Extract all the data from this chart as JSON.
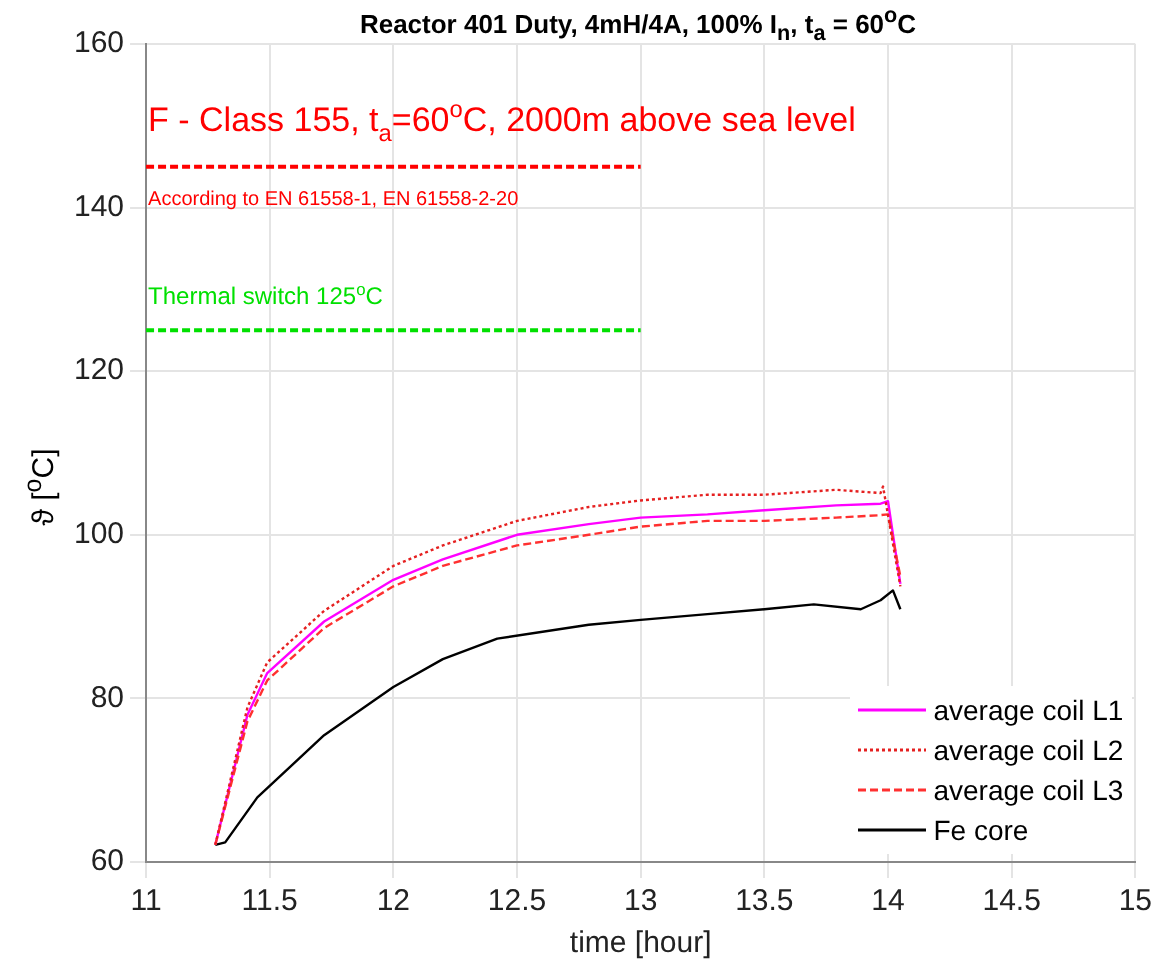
{
  "chart_data": {
    "type": "line",
    "title": "Reactor 401 Duty, 4mH/4A, 100% I$_{n}$, t$_{a}$ = 60$^{o}$C",
    "xlabel": "time [hour]",
    "ylabel": "ϑ [$^{o}$C]",
    "xlim": [
      11,
      15
    ],
    "xticks": [
      11,
      11.5,
      12,
      12.5,
      13,
      13.5,
      14,
      14.5,
      15
    ],
    "ylim": [
      60,
      160
    ],
    "yticks": [
      60,
      80,
      100,
      120,
      140,
      160
    ],
    "grid": true,
    "legend": "bottom right",
    "marker": "none",
    "series": [
      {
        "name": "average coil L1",
        "color": "#ff00ff",
        "line_style": "solid",
        "x": [
          11.28,
          11.41,
          11.49,
          11.72,
          12.0,
          12.2,
          12.5,
          12.79,
          13.0,
          13.27,
          13.5,
          13.79,
          13.97,
          14.0,
          14.05
        ],
        "values": [
          62.1,
          78,
          83.1,
          89.4,
          94.5,
          97,
          100,
          101.3,
          102.1,
          102.5,
          103,
          103.6,
          103.8,
          104.1,
          94
        ]
      },
      {
        "name": "average coil L2",
        "color": "#e52020",
        "line_style": "dotted",
        "x": [
          11.28,
          11.41,
          11.49,
          11.72,
          12.0,
          12.2,
          12.5,
          12.79,
          13.0,
          13.27,
          13.5,
          13.79,
          13.97,
          13.98,
          14.05
        ],
        "values": [
          62.1,
          78.9,
          84.4,
          90.7,
          96.2,
          98.7,
          101.7,
          103.4,
          104.2,
          104.9,
          104.9,
          105.5,
          105.1,
          105.9,
          93.7
        ]
      },
      {
        "name": "average coil L3",
        "color": "#ff3030",
        "line_style": "dashed",
        "x": [
          11.28,
          11.41,
          11.49,
          11.72,
          12.0,
          12.2,
          12.5,
          12.79,
          13.0,
          13.27,
          13.5,
          13.79,
          13.97,
          14.0,
          14.05
        ],
        "values": [
          62.1,
          77.2,
          82.2,
          88.6,
          93.7,
          96.2,
          98.7,
          100,
          101,
          101.7,
          101.7,
          102.1,
          102.4,
          102.5,
          94.9
        ]
      },
      {
        "name": "Fe core",
        "color": "#000000",
        "line_style": "solid",
        "x": [
          11.28,
          11.32,
          11.45,
          11.72,
          12.0,
          12.2,
          12.42,
          12.79,
          13.0,
          13.27,
          13.5,
          13.7,
          13.89,
          13.97,
          14.02,
          14.05
        ],
        "values": [
          62.1,
          62.4,
          67.9,
          75.5,
          81.4,
          84.8,
          87.3,
          89,
          89.6,
          90.3,
          90.9,
          91.5,
          90.9,
          92,
          93.2,
          90.9
        ]
      }
    ],
    "ref_lines": [
      {
        "axis": "y",
        "value": 145,
        "color": "#ff0000",
        "line_style": "dashed"
      },
      {
        "axis": "y",
        "value": 125,
        "label": "Thermal switch 125$^{o}$C",
        "color": "#00e000",
        "line_style": "dashed"
      }
    ],
    "annotations": [
      "F - Class 155, t$_{a}$=60$^{o}$C, 2000m above sea level",
      "According to EN 61558-1, EN 61558-2-20"
    ]
  }
}
